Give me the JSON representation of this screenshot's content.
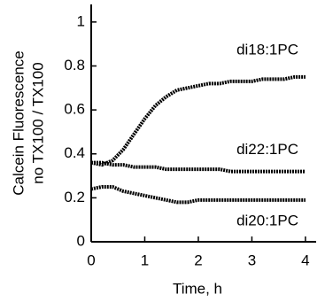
{
  "chart_data": {
    "type": "line",
    "x_label": "Time, h",
    "y_label": [
      "Calcein Fluorescence",
      "no TX100 / TX100"
    ],
    "x": [
      0,
      0.2,
      0.4,
      0.6,
      0.8,
      1.0,
      1.2,
      1.4,
      1.6,
      1.8,
      2.0,
      2.2,
      2.4,
      2.6,
      2.8,
      3.0,
      3.2,
      3.4,
      3.6,
      3.8,
      4.0
    ],
    "series": [
      {
        "name": "di18:1PC",
        "color": "#000000",
        "values": [
          0.36,
          0.35,
          0.37,
          0.42,
          0.49,
          0.56,
          0.62,
          0.66,
          0.69,
          0.7,
          0.71,
          0.72,
          0.72,
          0.73,
          0.73,
          0.73,
          0.74,
          0.74,
          0.74,
          0.75,
          0.75
        ]
      },
      {
        "name": "di22:1PC",
        "color": "#000000",
        "values": [
          0.36,
          0.36,
          0.35,
          0.35,
          0.34,
          0.34,
          0.34,
          0.33,
          0.33,
          0.33,
          0.33,
          0.33,
          0.33,
          0.32,
          0.32,
          0.32,
          0.32,
          0.32,
          0.32,
          0.32,
          0.32
        ]
      },
      {
        "name": "di20:1PC",
        "color": "#000000",
        "values": [
          0.24,
          0.25,
          0.25,
          0.23,
          0.22,
          0.21,
          0.2,
          0.19,
          0.18,
          0.18,
          0.19,
          0.19,
          0.19,
          0.19,
          0.19,
          0.19,
          0.19,
          0.19,
          0.19,
          0.19,
          0.19
        ]
      }
    ],
    "xlim": [
      0,
      4.2
    ],
    "xticks": [
      0,
      1,
      2,
      3,
      4
    ],
    "ylim": [
      0,
      1.08
    ],
    "yticks": [
      0,
      0.2,
      0.4,
      0.6,
      0.8,
      1
    ],
    "grid": false
  }
}
